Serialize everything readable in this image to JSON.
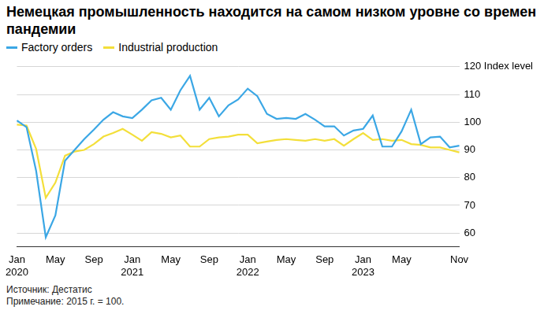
{
  "chart_data": {
    "type": "line",
    "title": "Немецкая промышленность находится на самом низком уровне со времен пандемии",
    "source": "Источник: Дестатис",
    "note": "Примечание: 2015 г. = 100.",
    "legend": "top-left",
    "grid": true,
    "categories": [
      "Jan 2020",
      null,
      null,
      null,
      "May",
      null,
      null,
      null,
      "Sep",
      null,
      null,
      null,
      "Jan 2021",
      null,
      null,
      null,
      "May",
      null,
      null,
      null,
      "Sep",
      null,
      null,
      null,
      "Jan 2022",
      null,
      null,
      null,
      "May",
      null,
      null,
      null,
      "Sep",
      null,
      null,
      null,
      "Jan 2023",
      null,
      null,
      null,
      "May",
      null,
      null,
      null,
      null,
      null,
      "Nov"
    ],
    "series": [
      {
        "name": "Factory orders",
        "color": "#3ba7e5",
        "values": [
          100.6,
          98.2,
          82.4,
          58.5,
          66.4,
          86.1,
          90,
          93.9,
          97.3,
          100.9,
          103.6,
          102.1,
          101.5,
          104.5,
          107.9,
          108.8,
          104.5,
          111.5,
          116.7,
          104.5,
          108.8,
          102.1,
          106.1,
          108.2,
          112.1,
          109.4,
          103,
          101.2,
          101.5,
          101.2,
          103,
          100.9,
          98.5,
          98.5,
          95.2,
          97,
          97.6,
          102.4,
          91.2,
          91.2,
          96.7,
          104.5,
          92.1,
          94.5,
          94.8,
          90.9,
          91.5
        ]
      },
      {
        "name": "Industrial production",
        "color": "#f3df3a",
        "values": [
          99.1,
          98.8,
          90.3,
          72.7,
          78.2,
          87.9,
          89.4,
          90,
          92.1,
          94.8,
          96.1,
          97.6,
          95.5,
          93.3,
          96.4,
          95.8,
          94.5,
          95.2,
          91.2,
          91.2,
          93.9,
          94.5,
          94.8,
          95.5,
          95.5,
          92.4,
          93,
          93.6,
          93.9,
          93.6,
          93.3,
          93.9,
          93.3,
          93.9,
          91.5,
          93.9,
          96.1,
          93.6,
          93.9,
          93.3,
          93.6,
          92.1,
          91.8,
          90.9,
          90.9,
          90,
          89.1
        ]
      }
    ],
    "ylim": [
      55,
      120
    ],
    "yticks": [
      60,
      70,
      80,
      90,
      100,
      110,
      {
        "value": 120,
        "label": "120 Index level"
      }
    ]
  }
}
